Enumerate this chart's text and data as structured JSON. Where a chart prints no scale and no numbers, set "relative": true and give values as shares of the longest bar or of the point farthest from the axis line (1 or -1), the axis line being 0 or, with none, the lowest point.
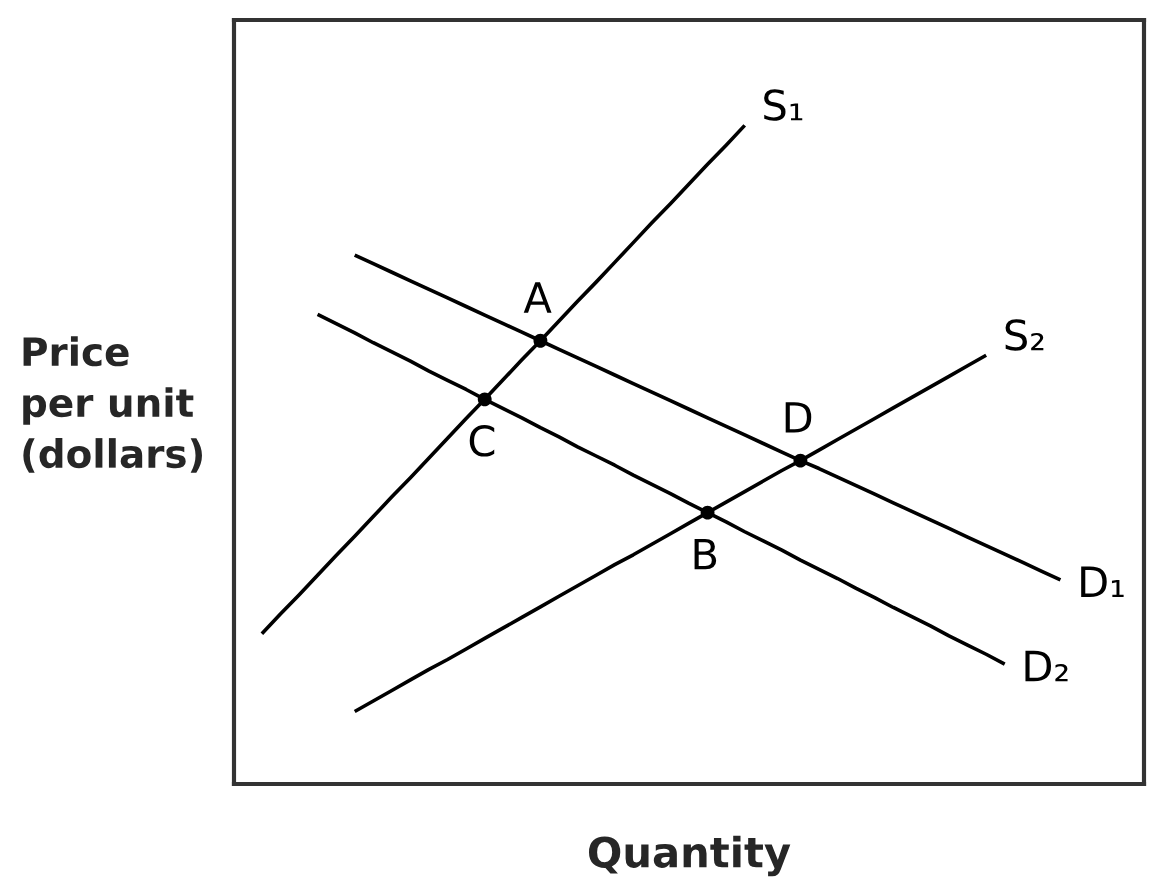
{
  "chart_data": {
    "type": "line",
    "relative": true,
    "xlabel": "Quantity",
    "ylabel": "Price per unit (dollars)",
    "categories": [
      null,
      null,
      null,
      null,
      null,
      null,
      null,
      null,
      null,
      null,
      null,
      null,
      null,
      null,
      null,
      null,
      null,
      null,
      null,
      null,
      null,
      null,
      null,
      null,
      null,
      null,
      null,
      null,
      null,
      null,
      null,
      null,
      null,
      null,
      null,
      null,
      null,
      null,
      null,
      null,
      null,
      null,
      null,
      null,
      null,
      null,
      null,
      null,
      null
    ],
    "series": [
      {
        "name": "S₁",
        "color": "#000000",
        "values": [
          null,
          0.228,
          0.258,
          0.287,
          0.317,
          0.347,
          0.376,
          0.406,
          0.436,
          0.465,
          0.495,
          0.525,
          0.555,
          0.584,
          0.614,
          0.644,
          0.673,
          0.703,
          0.733,
          0.762,
          0.792,
          0.822,
          0.852,
          0.881,
          0.911,
          0.941,
          0.97,
          1.0,
          null,
          null,
          null,
          null,
          null,
          null,
          null,
          null,
          null,
          null,
          null,
          null,
          null,
          null,
          null,
          null,
          null,
          null,
          null,
          null,
          null
        ]
      },
      {
        "name": "S₂",
        "color": "#000000",
        "values": [
          null,
          null,
          null,
          null,
          null,
          null,
          0.11,
          0.126,
          0.142,
          0.158,
          0.174,
          0.189,
          0.205,
          0.221,
          0.237,
          0.253,
          0.269,
          0.285,
          0.301,
          0.317,
          0.333,
          0.348,
          0.364,
          0.38,
          0.396,
          0.412,
          0.428,
          0.444,
          0.46,
          0.476,
          0.491,
          0.507,
          0.523,
          0.539,
          0.555,
          0.571,
          0.587,
          0.603,
          0.619,
          0.635,
          0.651,
          null,
          null,
          null,
          null,
          null,
          null,
          null,
          null
        ]
      },
      {
        "name": "D₁",
        "color": "#000000",
        "values": [
          null,
          null,
          null,
          null,
          null,
          null,
          0.803,
          0.79,
          0.777,
          0.764,
          0.751,
          0.738,
          0.725,
          0.712,
          0.699,
          0.686,
          0.673,
          0.66,
          0.647,
          0.634,
          0.621,
          0.608,
          0.595,
          0.582,
          0.569,
          0.556,
          0.543,
          0.53,
          0.517,
          0.504,
          0.491,
          0.479,
          0.466,
          0.453,
          0.44,
          0.427,
          0.414,
          0.401,
          0.388,
          0.375,
          0.362,
          0.349,
          0.336,
          0.323,
          0.31,
          null,
          null,
          null,
          null
        ]
      },
      {
        "name": "D₂",
        "color": "#000000",
        "values": [
          null,
          null,
          null,
          null,
          0.713,
          0.699,
          0.685,
          0.67,
          0.656,
          0.642,
          0.627,
          0.613,
          0.599,
          0.584,
          0.57,
          0.556,
          0.541,
          0.527,
          0.512,
          0.498,
          0.484,
          0.469,
          0.455,
          0.441,
          0.426,
          0.412,
          0.398,
          0.383,
          0.369,
          0.355,
          0.34,
          0.326,
          0.312,
          0.297,
          0.283,
          0.268,
          0.254,
          0.24,
          0.225,
          0.211,
          0.197,
          0.182,
          null,
          null,
          null,
          null,
          null,
          null,
          null
        ]
      },
      {
        "name": "A",
        "marker": "circle",
        "color": "#000000",
        "values": [
          null,
          null,
          null,
          null,
          null,
          null,
          null,
          null,
          null,
          null,
          null,
          null,
          null,
          null,
          null,
          null,
          0.673,
          null,
          null,
          null,
          null,
          null,
          null,
          null,
          null,
          null,
          null,
          null,
          null,
          null,
          null,
          null,
          null,
          null,
          null,
          null,
          null,
          null,
          null,
          null,
          null,
          null,
          null,
          null,
          null,
          null,
          null,
          null,
          null
        ]
      },
      {
        "name": "C",
        "marker": "circle",
        "color": "#000000",
        "values": [
          null,
          null,
          null,
          null,
          null,
          null,
          null,
          null,
          null,
          null,
          null,
          null,
          null,
          0.584,
          null,
          null,
          null,
          null,
          null,
          null,
          null,
          null,
          null,
          null,
          null,
          null,
          null,
          null,
          null,
          null,
          null,
          null,
          null,
          null,
          null,
          null,
          null,
          null,
          null,
          null,
          null,
          null,
          null,
          null,
          null,
          null,
          null,
          null,
          null
        ]
      },
      {
        "name": "D",
        "marker": "circle",
        "color": "#000000",
        "values": [
          null,
          null,
          null,
          null,
          null,
          null,
          null,
          null,
          null,
          null,
          null,
          null,
          null,
          null,
          null,
          null,
          null,
          null,
          null,
          null,
          null,
          null,
          null,
          null,
          null,
          null,
          null,
          null,
          null,
          null,
          0.491,
          null,
          null,
          null,
          null,
          null,
          null,
          null,
          null,
          null,
          null,
          null,
          null,
          null,
          null,
          null,
          null,
          null,
          null
        ]
      },
      {
        "name": "B",
        "marker": "circle",
        "color": "#000000",
        "values": [
          null,
          null,
          null,
          null,
          null,
          null,
          null,
          null,
          null,
          null,
          null,
          null,
          null,
          null,
          null,
          null,
          null,
          null,
          null,
          null,
          null,
          null,
          null,
          null,
          null,
          0.412,
          null,
          null,
          null,
          null,
          null,
          null,
          null,
          null,
          null,
          null,
          null,
          null,
          null,
          null,
          null,
          null,
          null,
          null,
          null,
          null,
          null,
          null,
          null
        ]
      }
    ]
  }
}
